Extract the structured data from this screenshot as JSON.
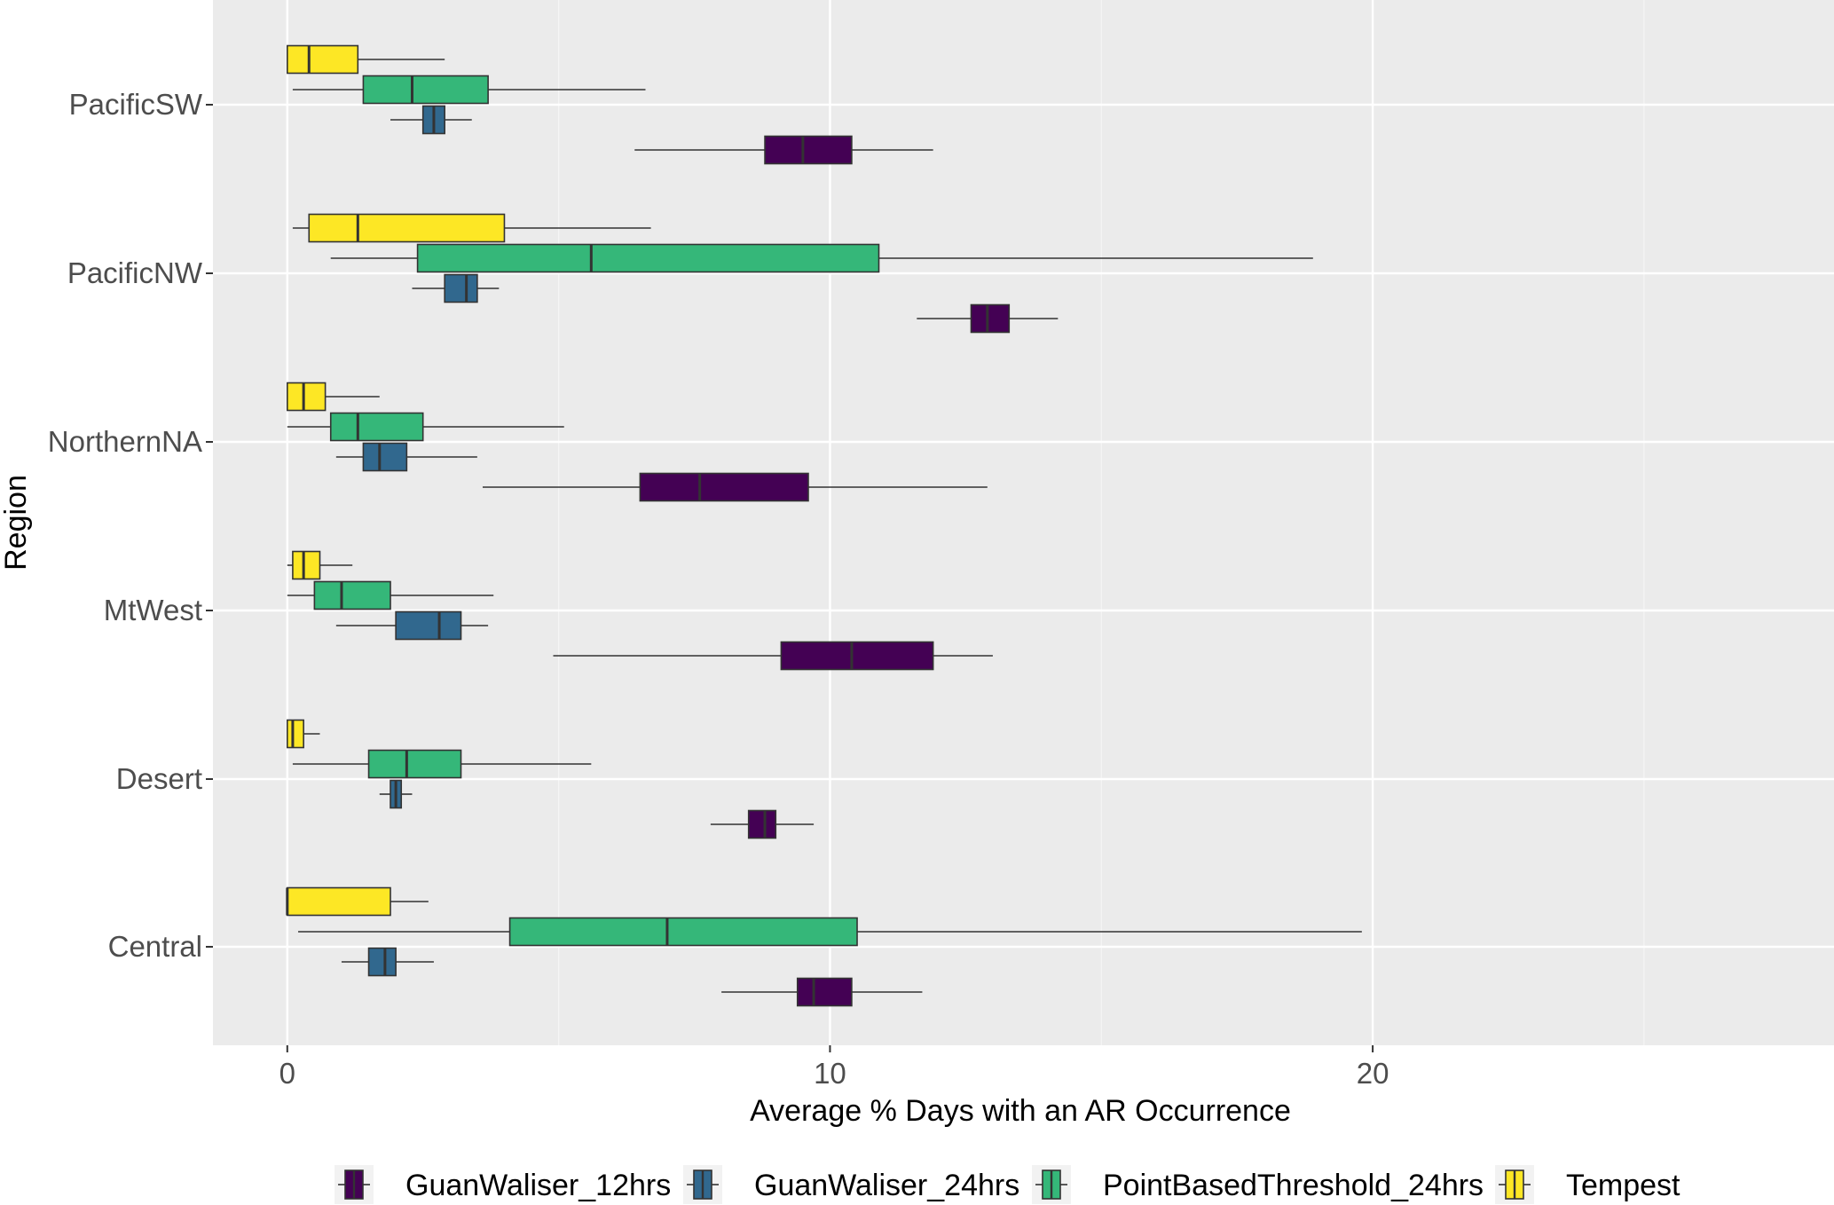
{
  "chart_data": {
    "type": "boxplot",
    "orientation": "horizontal",
    "xlabel": "Average % Days with an AR Occurrence",
    "ylabel": "Region",
    "xlim": [
      -1.37,
      28.5
    ],
    "x_ticks": [
      0,
      10,
      20
    ],
    "grid": true,
    "legend_position": "bottom",
    "categories": [
      "PacificSW",
      "PacificNW",
      "NorthernNA",
      "MtWest",
      "Desert",
      "Central"
    ],
    "series": [
      {
        "name": "GuanWaliser_12hrs",
        "color": "#440154",
        "stats": [
          {
            "whisker_low": 6.4,
            "q1": 8.8,
            "median": 9.5,
            "q3": 10.4,
            "whisker_high": 11.9
          },
          {
            "whisker_low": 11.6,
            "q1": 12.6,
            "median": 12.9,
            "q3": 13.3,
            "whisker_high": 14.2
          },
          {
            "whisker_low": 3.6,
            "q1": 6.5,
            "median": 7.6,
            "q3": 9.6,
            "whisker_high": 12.9
          },
          {
            "whisker_low": 4.9,
            "q1": 9.1,
            "median": 10.4,
            "q3": 11.9,
            "whisker_high": 13.0
          },
          {
            "whisker_low": 7.8,
            "q1": 8.5,
            "median": 8.8,
            "q3": 9.0,
            "whisker_high": 9.7
          },
          {
            "whisker_low": 8.0,
            "q1": 9.4,
            "median": 9.7,
            "q3": 10.4,
            "whisker_high": 11.7
          }
        ]
      },
      {
        "name": "GuanWaliser_24hrs",
        "color": "#31688e",
        "stats": [
          {
            "whisker_low": 1.9,
            "q1": 2.5,
            "median": 2.7,
            "q3": 2.9,
            "whisker_high": 3.4
          },
          {
            "whisker_low": 2.3,
            "q1": 2.9,
            "median": 3.3,
            "q3": 3.5,
            "whisker_high": 3.9
          },
          {
            "whisker_low": 0.9,
            "q1": 1.4,
            "median": 1.7,
            "q3": 2.2,
            "whisker_high": 3.5
          },
          {
            "whisker_low": 0.9,
            "q1": 2.0,
            "median": 2.8,
            "q3": 3.2,
            "whisker_high": 3.7
          },
          {
            "whisker_low": 1.7,
            "q1": 1.9,
            "median": 2.0,
            "q3": 2.1,
            "whisker_high": 2.3
          },
          {
            "whisker_low": 1.0,
            "q1": 1.5,
            "median": 1.8,
            "q3": 2.0,
            "whisker_high": 2.7
          }
        ]
      },
      {
        "name": "PointBasedThreshold_24hrs",
        "color": "#35b779",
        "stats": [
          {
            "whisker_low": 0.1,
            "q1": 1.4,
            "median": 2.3,
            "q3": 3.7,
            "whisker_high": 6.6
          },
          {
            "whisker_low": 0.8,
            "q1": 2.4,
            "median": 5.6,
            "q3": 10.9,
            "whisker_high": 18.9
          },
          {
            "whisker_low": 0.0,
            "q1": 0.8,
            "median": 1.3,
            "q3": 2.5,
            "whisker_high": 5.1
          },
          {
            "whisker_low": 0.0,
            "q1": 0.5,
            "median": 1.0,
            "q3": 1.9,
            "whisker_high": 3.8
          },
          {
            "whisker_low": 0.1,
            "q1": 1.5,
            "median": 2.2,
            "q3": 3.2,
            "whisker_high": 5.6
          },
          {
            "whisker_low": 0.2,
            "q1": 4.1,
            "median": 7.0,
            "q3": 10.5,
            "whisker_high": 19.8
          }
        ]
      },
      {
        "name": "Tempest",
        "color": "#fde725",
        "stats": [
          {
            "whisker_low": 0.0,
            "q1": 0.0,
            "median": 0.4,
            "q3": 1.3,
            "whisker_high": 2.9
          },
          {
            "whisker_low": 0.1,
            "q1": 0.4,
            "median": 1.3,
            "q3": 4.0,
            "whisker_high": 6.7
          },
          {
            "whisker_low": 0.0,
            "q1": 0.0,
            "median": 0.3,
            "q3": 0.7,
            "whisker_high": 1.7
          },
          {
            "whisker_low": 0.0,
            "q1": 0.1,
            "median": 0.3,
            "q3": 0.6,
            "whisker_high": 1.2
          },
          {
            "whisker_low": 0.0,
            "q1": 0.0,
            "median": 0.1,
            "q3": 0.3,
            "whisker_high": 0.6
          },
          {
            "whisker_low": 0.0,
            "q1": 0.0,
            "median": 0.0,
            "q3": 1.9,
            "whisker_high": 2.6
          }
        ]
      }
    ]
  }
}
